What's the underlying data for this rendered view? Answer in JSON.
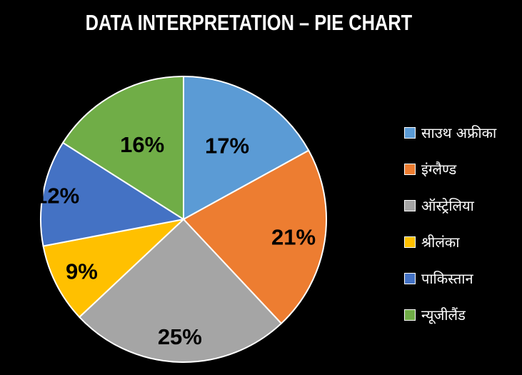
{
  "chart_data": {
    "type": "pie",
    "title": "DATA INTERPRETATION – PIE CHART",
    "categories": [
      "साउथ अफ्रीका",
      "इंग्लैण्ड",
      "ऑस्ट्रेलिया",
      "श्रीलंका",
      "पाकिस्तान",
      "न्यूजीलैंड"
    ],
    "values": [
      17,
      21,
      25,
      9,
      12,
      16
    ],
    "value_labels": [
      "17%",
      "21%",
      "25%",
      "9%",
      "12%",
      "16%"
    ],
    "colors": [
      "#5b9bd5",
      "#ed7d31",
      "#a5a5a5",
      "#ffc000",
      "#4472c4",
      "#70ad47"
    ],
    "legend_position": "right"
  }
}
